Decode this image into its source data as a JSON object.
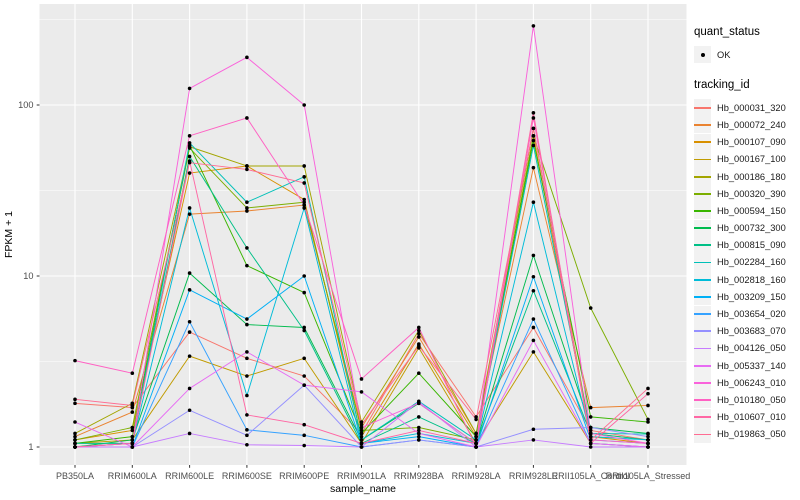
{
  "chart_data": {
    "type": "line",
    "title": "",
    "xlabel": "sample_name",
    "ylabel": "FPKM + 1",
    "y_scale": "log10",
    "ylim": [
      0.8,
      390
    ],
    "grid": true,
    "legend_position": "right",
    "y_ticks": [
      1,
      10,
      100
    ],
    "y_tick_labels": [
      "1",
      "10",
      "100"
    ],
    "y_minor_gridlines": [
      3.162,
      31.623,
      316.228
    ],
    "categories": [
      "PB350LA",
      "RRIM600LA",
      "RRIM600LE",
      "RRIM600SE",
      "RRIM600PE",
      "RRIM901LA",
      "RRIM928BA",
      "RRIM928LA",
      "RRIM928LE",
      "RRII105LA_Control",
      "RRII105LA_Stressed"
    ],
    "legend_groups": [
      {
        "title": "quant_status",
        "key_type": "point",
        "items": [
          {
            "label": "OK",
            "color": "#000000"
          }
        ]
      },
      {
        "title": "tracking_id",
        "key_type": "line"
      }
    ],
    "style": {
      "panel_bg": "#EBEBEB",
      "grid_color": "#FFFFFF",
      "point_color": "#000000",
      "tick_color": "#333333",
      "tick_text_color": "#4D4D4D",
      "axis_title_color": "#000000"
    },
    "series": [
      {
        "tracking_id": "Hb_000031_320",
        "color": "#F8766D",
        "values": [
          1.8,
          1.7,
          4.7,
          3.3,
          2.6,
          1.2,
          4.6,
          1.5,
          5.0,
          1.25,
          1.1
        ]
      },
      {
        "tracking_id": "Hb_000072_240",
        "color": "#EA8331",
        "values": [
          1.15,
          1.6,
          23,
          24,
          26,
          1.3,
          4.4,
          1.2,
          43,
          1.7,
          1.75
        ]
      },
      {
        "tracking_id": "Hb_000107_090",
        "color": "#D89000",
        "values": [
          1.1,
          1.25,
          40,
          44,
          28,
          1.15,
          4.0,
          1.15,
          66,
          1.15,
          1.05
        ]
      },
      {
        "tracking_id": "Hb_000167_100",
        "color": "#C09B00",
        "values": [
          1.05,
          1.1,
          3.4,
          2.6,
          3.3,
          1.05,
          3.8,
          1.05,
          3.6,
          1.05,
          1.0
        ]
      },
      {
        "tracking_id": "Hb_000186_180",
        "color": "#A3A500",
        "values": [
          1.2,
          1.8,
          57,
          44,
          44,
          1.4,
          4.8,
          1.2,
          73,
          1.2,
          1.1
        ]
      },
      {
        "tracking_id": "Hb_000320_390",
        "color": "#7CAE00",
        "values": [
          1.1,
          1.3,
          56,
          25,
          27,
          1.25,
          1.3,
          1.1,
          66,
          6.5,
          1.45
        ]
      },
      {
        "tracking_id": "Hb_000594_150",
        "color": "#39B600",
        "values": [
          1.05,
          1.15,
          58,
          11.5,
          8.0,
          1.2,
          2.7,
          1.15,
          62,
          1.5,
          1.4
        ]
      },
      {
        "tracking_id": "Hb_000732_300",
        "color": "#00BB4E",
        "values": [
          1.0,
          1.1,
          10.4,
          5.2,
          5.0,
          1.1,
          1.8,
          1.05,
          13.2,
          1.3,
          1.2
        ]
      },
      {
        "tracking_id": "Hb_000815_090",
        "color": "#00C087",
        "values": [
          1.05,
          1.05,
          50,
          14.6,
          4.8,
          1.05,
          1.5,
          1.05,
          8.2,
          1.2,
          1.1
        ]
      },
      {
        "tracking_id": "Hb_002284_160",
        "color": "#00C0B8",
        "values": [
          1.0,
          1.05,
          60,
          27,
          38,
          1.1,
          1.85,
          1.1,
          58,
          1.2,
          1.19
        ]
      },
      {
        "tracking_id": "Hb_002818_160",
        "color": "#00BCD8",
        "values": [
          1.0,
          1.05,
          25,
          2.0,
          25,
          1.05,
          1.2,
          1.05,
          27,
          1.15,
          1.1
        ]
      },
      {
        "tracking_id": "Hb_003209_150",
        "color": "#00B0F6",
        "values": [
          1.0,
          1.0,
          8.3,
          5.6,
          10,
          1.05,
          1.15,
          1.0,
          9.9,
          1.1,
          1.05
        ]
      },
      {
        "tracking_id": "Hb_003654_020",
        "color": "#35A2FF",
        "values": [
          1.0,
          1.0,
          5.4,
          1.26,
          1.17,
          1.0,
          1.1,
          1.0,
          5.6,
          1.05,
          1.0
        ]
      },
      {
        "tracking_id": "Hb_003683_070",
        "color": "#9590FF",
        "values": [
          1.0,
          1.0,
          1.64,
          1.17,
          2.3,
          1.0,
          1.1,
          1.0,
          1.27,
          1.3,
          1.15
        ]
      },
      {
        "tracking_id": "Hb_004126_050",
        "color": "#C77CFF",
        "values": [
          1.0,
          1.0,
          1.2,
          1.03,
          1.02,
          1.0,
          1.84,
          1.0,
          1.1,
          1.0,
          1.0
        ]
      },
      {
        "tracking_id": "Hb_005337_140",
        "color": "#E76BF3",
        "values": [
          1.4,
          1.0,
          2.2,
          3.6,
          2.3,
          2.1,
          1.2,
          1.0,
          4.2,
          1.05,
          1.0
        ]
      },
      {
        "tracking_id": "Hb_006243_010",
        "color": "#FA62DB",
        "values": [
          1.0,
          1.05,
          125,
          190,
          100,
          1.3,
          1.8,
          1.05,
          290,
          1.2,
          1.05
        ]
      },
      {
        "tracking_id": "Hb_010180_050",
        "color": "#FF61C3",
        "values": [
          3.2,
          2.7,
          66,
          84,
          26,
          2.5,
          5.0,
          1.0,
          84,
          1.1,
          1.05
        ]
      },
      {
        "tracking_id": "Hb_010607_010",
        "color": "#FF67A4",
        "values": [
          1.0,
          1.05,
          47,
          1.54,
          1.35,
          1.05,
          1.25,
          1.05,
          90,
          1.05,
          2.05
        ]
      },
      {
        "tracking_id": "Hb_019863_050",
        "color": "#FF6C92",
        "values": [
          1.9,
          1.75,
          46,
          42,
          35,
          1.35,
          3.9,
          1.45,
          73,
          1.1,
          2.2
        ]
      }
    ]
  }
}
